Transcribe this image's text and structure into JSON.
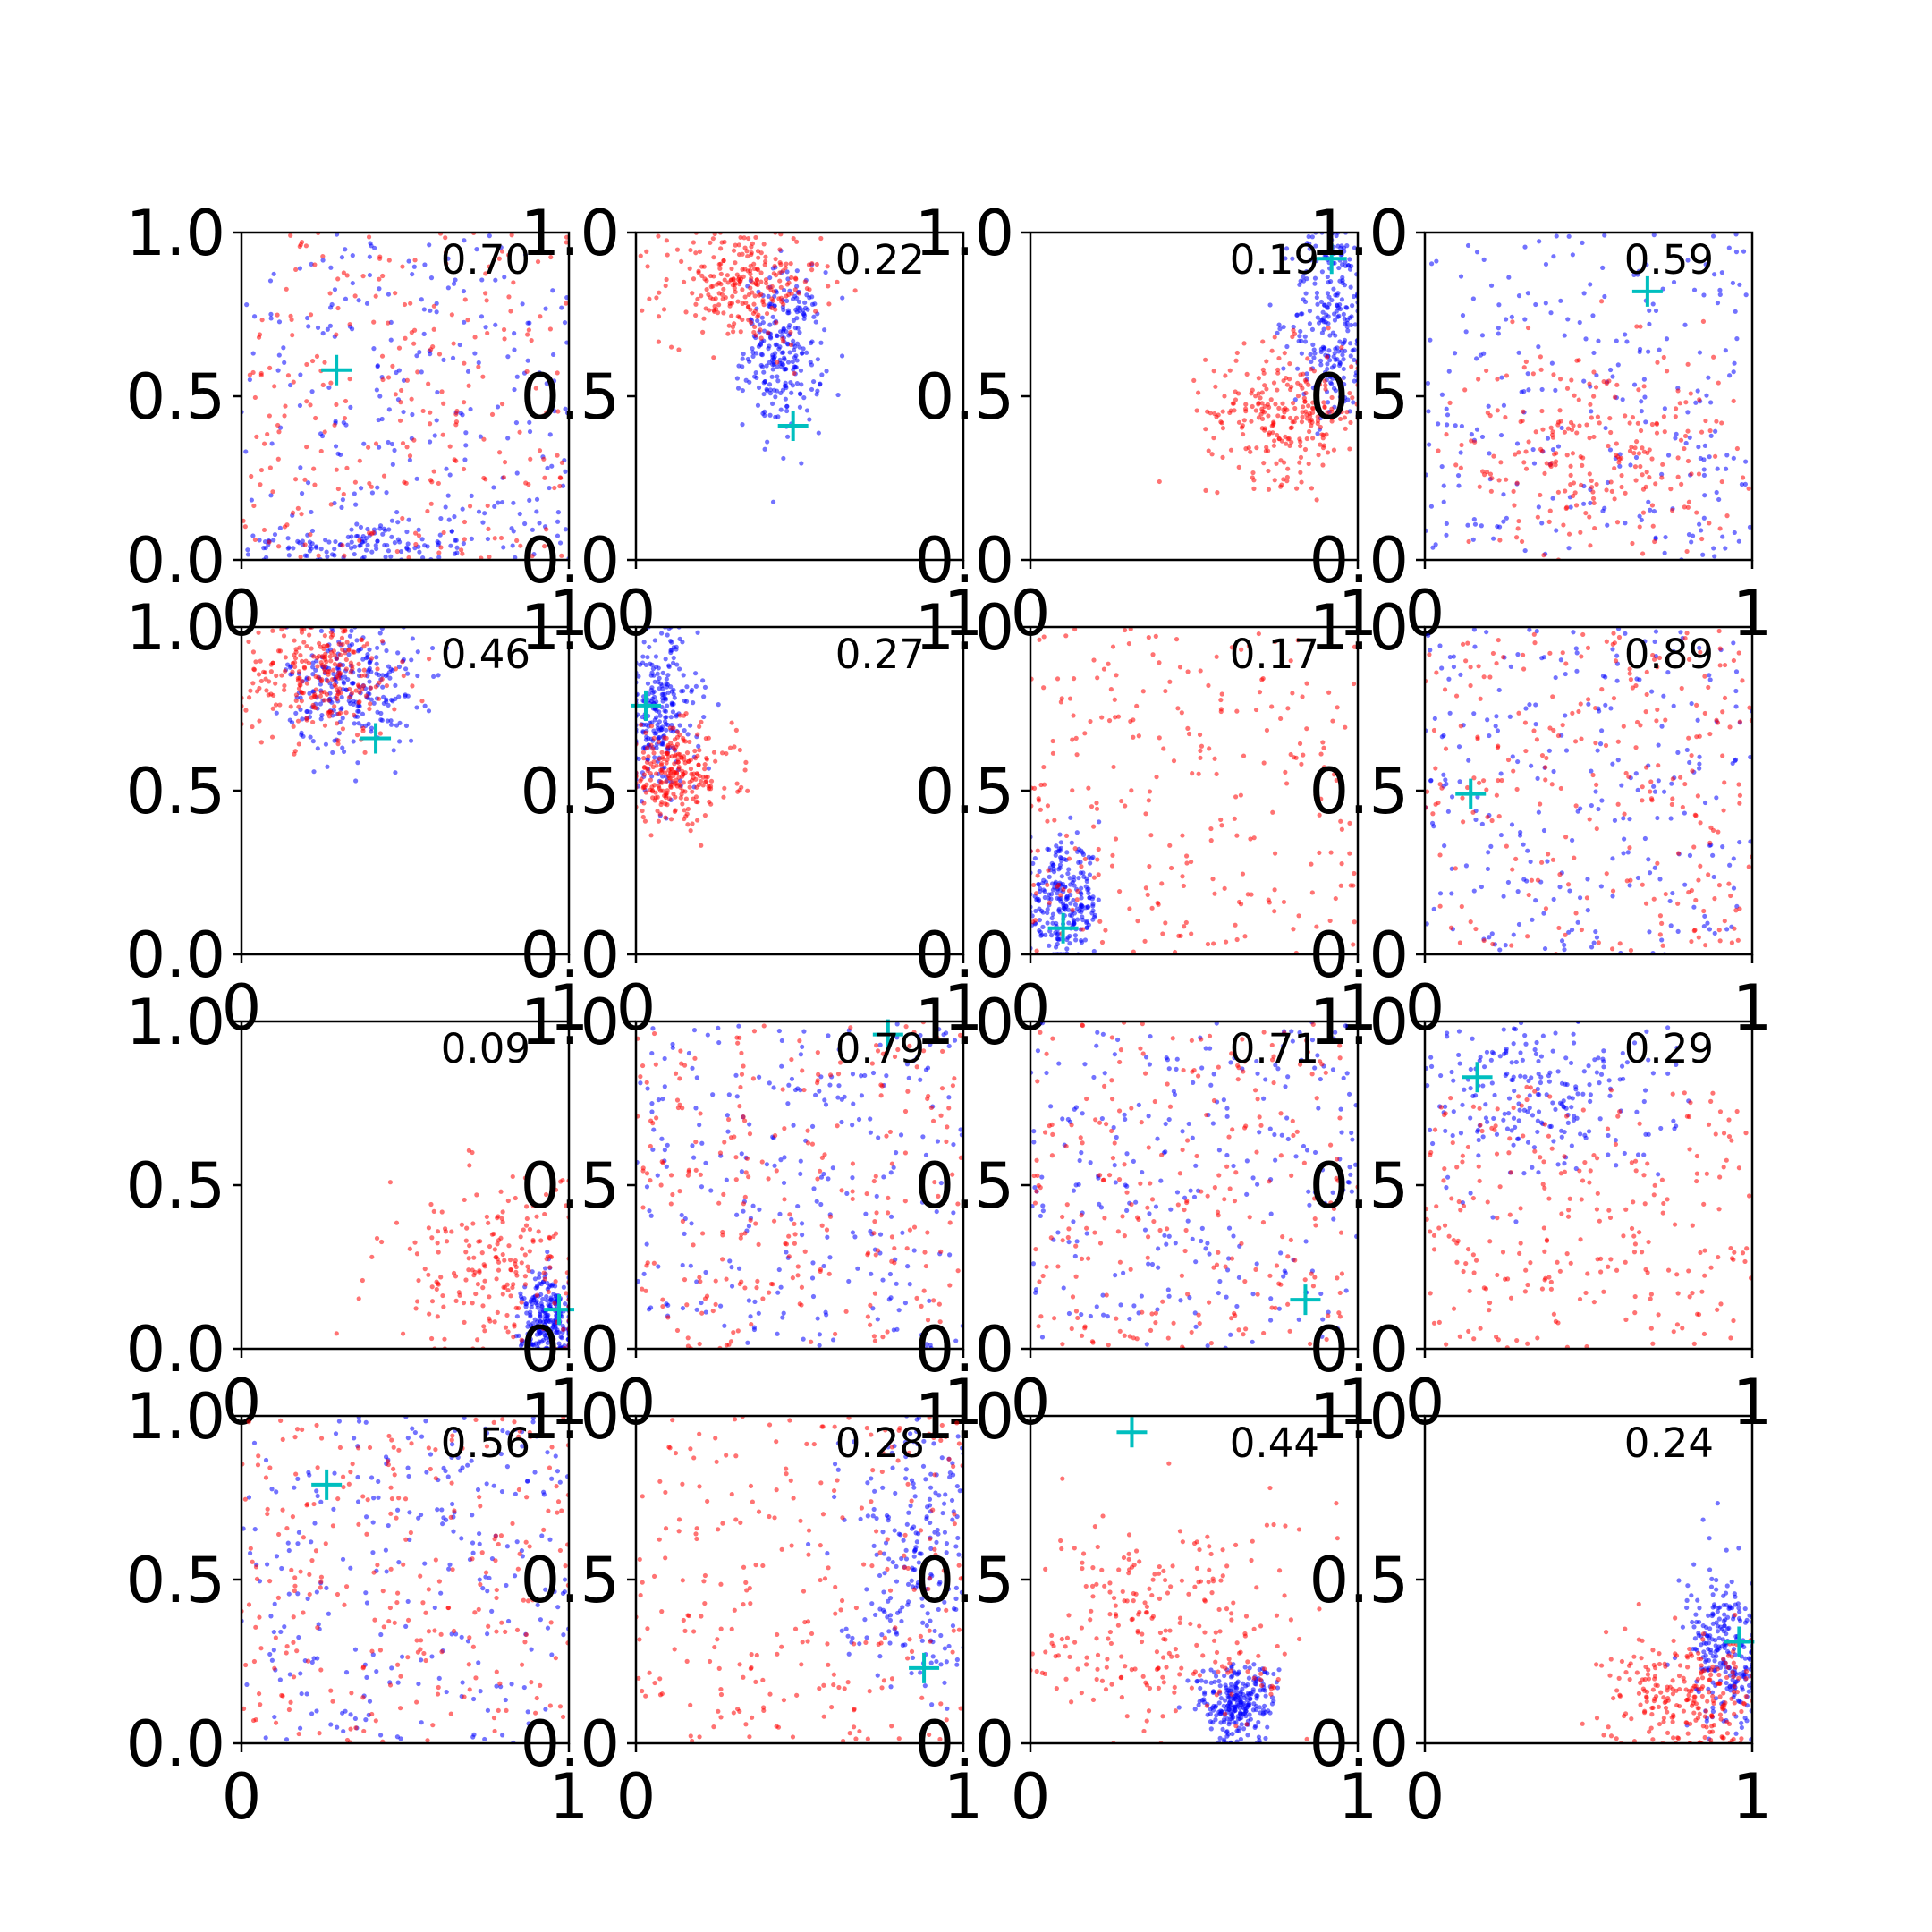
{
  "chart_data": {
    "type": "scatter",
    "layout": "4x4 grid of scatter panels",
    "xlim": [
      0,
      1
    ],
    "ylim": [
      0,
      1
    ],
    "x_ticks": [
      "0",
      "1"
    ],
    "y_ticks": [
      "0.0",
      "0.5",
      "1.0"
    ],
    "grid": false,
    "legend": "none",
    "colors": {
      "series_a": "#0000ff",
      "series_b": "#ff0000",
      "marker": "#00bfbf",
      "axes": "#000000"
    },
    "series_names": [
      "blue points",
      "red points"
    ],
    "panels": [
      {
        "label": "0.70",
        "marker": [
          0.29,
          0.58
        ],
        "blue": {
          "dist": "uniform",
          "cx": 0.5,
          "cy": 0.5,
          "sx": 1,
          "sy": 1
        },
        "blue2": {
          "dist": "gauss",
          "cx": 0.35,
          "cy": 0.05,
          "sx": 0.18,
          "sy": 0.03
        },
        "red": {
          "dist": "uniform",
          "cx": 0.5,
          "cy": 0.5,
          "sx": 1,
          "sy": 1
        }
      },
      {
        "label": "0.22",
        "marker": [
          0.48,
          0.41
        ],
        "blue": {
          "dist": "gauss",
          "cx": 0.45,
          "cy": 0.64,
          "sx": 0.06,
          "sy": 0.12
        },
        "red": {
          "dist": "gauss",
          "cx": 0.32,
          "cy": 0.84,
          "sx": 0.12,
          "sy": 0.09
        }
      },
      {
        "label": "0.19",
        "marker": [
          0.92,
          0.92
        ],
        "blue": {
          "dist": "gauss",
          "cx": 0.92,
          "cy": 0.74,
          "sx": 0.06,
          "sy": 0.16
        },
        "red": {
          "dist": "gauss",
          "cx": 0.78,
          "cy": 0.45,
          "sx": 0.12,
          "sy": 0.1
        }
      },
      {
        "label": "0.59",
        "marker": [
          0.68,
          0.82
        ],
        "blue": {
          "dist": "uniform",
          "cx": 0.5,
          "cy": 0.5,
          "sx": 1,
          "sy": 1
        },
        "red": {
          "dist": "gauss",
          "cx": 0.52,
          "cy": 0.33,
          "sx": 0.22,
          "sy": 0.16
        }
      },
      {
        "label": "0.46",
        "marker": [
          0.41,
          0.66
        ],
        "blue": {
          "dist": "gauss",
          "cx": 0.34,
          "cy": 0.82,
          "sx": 0.1,
          "sy": 0.1
        },
        "red": {
          "dist": "gauss",
          "cx": 0.24,
          "cy": 0.85,
          "sx": 0.12,
          "sy": 0.09
        }
      },
      {
        "label": "0.27",
        "marker": [
          0.03,
          0.76
        ],
        "blue": {
          "dist": "gauss",
          "cx": 0.07,
          "cy": 0.74,
          "sx": 0.06,
          "sy": 0.13
        },
        "red": {
          "dist": "gauss",
          "cx": 0.12,
          "cy": 0.55,
          "sx": 0.09,
          "sy": 0.07
        }
      },
      {
        "label": "0.17",
        "marker": [
          0.1,
          0.08
        ],
        "blue": {
          "dist": "gauss",
          "cx": 0.1,
          "cy": 0.15,
          "sx": 0.06,
          "sy": 0.09
        },
        "red": {
          "dist": "uniform",
          "cx": 0.5,
          "cy": 0.5,
          "sx": 1,
          "sy": 1
        }
      },
      {
        "label": "0.89",
        "marker": [
          0.14,
          0.49
        ],
        "blue": {
          "dist": "uniform",
          "cx": 0.5,
          "cy": 0.5,
          "sx": 1,
          "sy": 1
        },
        "red": {
          "dist": "uniform",
          "cx": 0.5,
          "cy": 0.5,
          "sx": 1,
          "sy": 1
        }
      },
      {
        "label": "0.09",
        "marker": [
          0.97,
          0.12
        ],
        "blue": {
          "dist": "gauss",
          "cx": 0.94,
          "cy": 0.08,
          "sx": 0.04,
          "sy": 0.08
        },
        "red": {
          "dist": "gauss",
          "cx": 0.82,
          "cy": 0.22,
          "sx": 0.2,
          "sy": 0.14
        }
      },
      {
        "label": "0.79",
        "marker": [
          0.77,
          0.96
        ],
        "blue": {
          "dist": "uniform",
          "cx": 0.5,
          "cy": 0.5,
          "sx": 1,
          "sy": 1
        },
        "red": {
          "dist": "uniform",
          "cx": 0.5,
          "cy": 0.5,
          "sx": 1,
          "sy": 1
        }
      },
      {
        "label": "0.71",
        "marker": [
          0.84,
          0.15
        ],
        "blue": {
          "dist": "uniform",
          "cx": 0.5,
          "cy": 0.5,
          "sx": 1,
          "sy": 1
        },
        "red": {
          "dist": "uniform",
          "cx": 0.5,
          "cy": 0.5,
          "sx": 1,
          "sy": 1
        }
      },
      {
        "label": "0.29",
        "marker": [
          0.16,
          0.83
        ],
        "blue": {
          "dist": "gauss",
          "cx": 0.3,
          "cy": 0.78,
          "sx": 0.22,
          "sy": 0.14
        },
        "red": {
          "dist": "uniform",
          "cx": 0.5,
          "cy": 0.4,
          "sx": 1,
          "sy": 0.8
        }
      },
      {
        "label": "0.56",
        "marker": [
          0.26,
          0.79
        ],
        "blue": {
          "dist": "uniform",
          "cx": 0.5,
          "cy": 0.5,
          "sx": 1,
          "sy": 1
        },
        "red": {
          "dist": "uniform",
          "cx": 0.5,
          "cy": 0.5,
          "sx": 1,
          "sy": 1
        }
      },
      {
        "label": "0.28",
        "marker": [
          0.88,
          0.23
        ],
        "blue": {
          "dist": "gauss",
          "cx": 0.86,
          "cy": 0.6,
          "sx": 0.12,
          "sy": 0.22
        },
        "red": {
          "dist": "uniform",
          "cx": 0.5,
          "cy": 0.5,
          "sx": 1,
          "sy": 1
        }
      },
      {
        "label": "0.44",
        "marker": [
          0.31,
          0.95
        ],
        "blue": {
          "dist": "gauss",
          "cx": 0.63,
          "cy": 0.12,
          "sx": 0.06,
          "sy": 0.06
        },
        "red": {
          "dist": "gauss",
          "cx": 0.42,
          "cy": 0.35,
          "sx": 0.22,
          "sy": 0.18
        }
      },
      {
        "label": "0.24",
        "marker": [
          0.96,
          0.31
        ],
        "blue": {
          "dist": "gauss",
          "cx": 0.92,
          "cy": 0.28,
          "sx": 0.06,
          "sy": 0.12
        },
        "red": {
          "dist": "gauss",
          "cx": 0.8,
          "cy": 0.14,
          "sx": 0.12,
          "sy": 0.09
        }
      }
    ]
  }
}
